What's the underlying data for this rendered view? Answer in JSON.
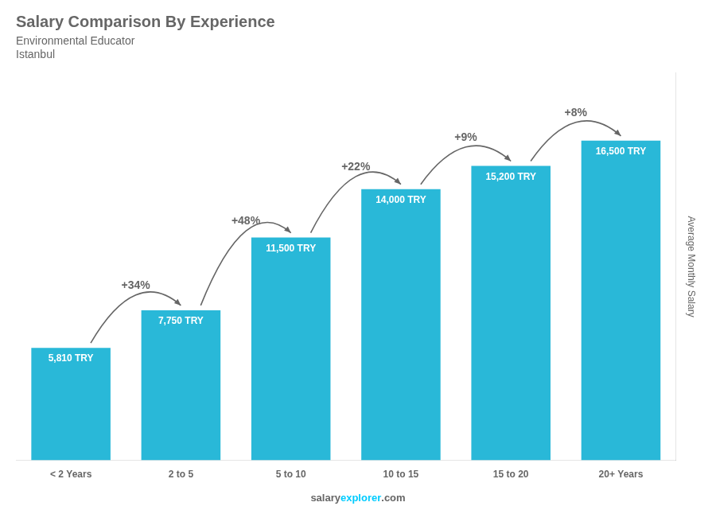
{
  "chart_data": {
    "type": "bar",
    "title": "Salary Comparison By Experience",
    "subtitle": [
      "Environmental Educator",
      "Istanbul"
    ],
    "categories": [
      "< 2 Years",
      "2 to 5",
      "5 to 10",
      "10 to 15",
      "15 to 20",
      "20+ Years"
    ],
    "values": [
      5810,
      7750,
      11500,
      14000,
      15200,
      16500
    ],
    "value_labels": [
      "5,810 TRY",
      "7,750 TRY",
      "11,500 TRY",
      "14,000 TRY",
      "15,200 TRY",
      "16,500 TRY"
    ],
    "data_labels": true,
    "color": "#29b8d8",
    "ylabel": "Average Monthly Salary",
    "ylim": [
      0,
      20000
    ],
    "grid": false,
    "tick_labels": "x",
    "annotations": [
      {
        "text": "+34%",
        "from": "< 2 Years",
        "to": "2 to 5"
      },
      {
        "text": "+48%",
        "from": "2 to 5",
        "to": "5 to 10"
      },
      {
        "text": "+22%",
        "from": "5 to 10",
        "to": "10 to 15"
      },
      {
        "text": "+9%",
        "from": "10 to 15",
        "to": "15 to 20"
      },
      {
        "text": "+8%",
        "from": "15 to 20",
        "to": "20+ Years"
      },
      {
        "text": "salary"
      },
      {
        "text": "explorer",
        "color": "#00ccff"
      },
      {
        "text": ".com"
      }
    ]
  }
}
